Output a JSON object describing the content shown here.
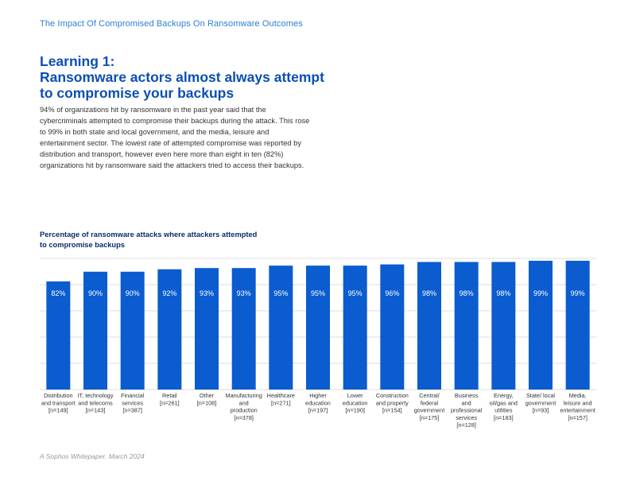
{
  "header": {
    "title": "The Impact Of Compromised Backups On Ransomware Outcomes"
  },
  "section": {
    "heading_line1": "Learning 1:",
    "heading_line2": "Ransomware actors almost always attempt",
    "heading_line3": "to compromise your backups",
    "body": "94% of organizations hit by ransomware in the past year said that the cybercriminals attempted to compromise their backups during the attack. This rose to 99% in both state and local government, and the media, leisure and entertainment sector. The lowest rate of attempted compromise was reported by distribution and transport, however even here more than eight in ten (82%) organizations hit by ransomware said the attackers tried to access their backups."
  },
  "footer": {
    "text": "A Sophos Whitepaper. March 2024"
  },
  "colors": {
    "bar": "#0a5ccf",
    "grid": "#dcdcdc",
    "bar_label": "#ffffff",
    "heading": "#0a4fb3",
    "accent": "#2a7fd4"
  },
  "chart_data": {
    "type": "bar",
    "title": "Percentage of ransomware attacks where attackers attempted to compromise backups",
    "title_line1": "Percentage of ransomware attacks where attackers attempted",
    "title_line2": "to compromise backups",
    "ylim": [
      0,
      100
    ],
    "grid": true,
    "categories": [
      [
        "Distribution",
        "and transport",
        "[n=149]"
      ],
      [
        "IT, technology",
        "and telecoms",
        "[n=143]"
      ],
      [
        "Financial",
        "services",
        "[n=387]"
      ],
      [
        "Retail",
        "[n=261]"
      ],
      [
        "Other",
        "[n=108]"
      ],
      [
        "Manufacturing",
        "and",
        "production",
        "[n=378]"
      ],
      [
        "Healthcare",
        "[n=271]"
      ],
      [
        "Higher",
        "education",
        "[n=197]"
      ],
      [
        "Lower",
        "education",
        "[n=190]"
      ],
      [
        "Construction",
        "and property",
        "[n=154]"
      ],
      [
        "Central/",
        "federal",
        "government",
        "[n=175]"
      ],
      [
        "Business",
        "and",
        "professional",
        "services",
        "[n=128]"
      ],
      [
        "Energy,",
        "oil/gas and",
        "utilities",
        "[n=183]"
      ],
      [
        "State/ local",
        "government",
        "[n=93]"
      ],
      [
        "Media,",
        "leisure and",
        "entertainment",
        "[n=157]"
      ]
    ],
    "values": [
      82,
      90,
      90,
      92,
      93,
      93,
      95,
      95,
      95,
      96,
      98,
      98,
      98,
      99,
      99
    ],
    "value_labels": [
      "82%",
      "90%",
      "90%",
      "92%",
      "93%",
      "93%",
      "95%",
      "95%",
      "95%",
      "96%",
      "98%",
      "98%",
      "98%",
      "99%",
      "99%"
    ]
  }
}
